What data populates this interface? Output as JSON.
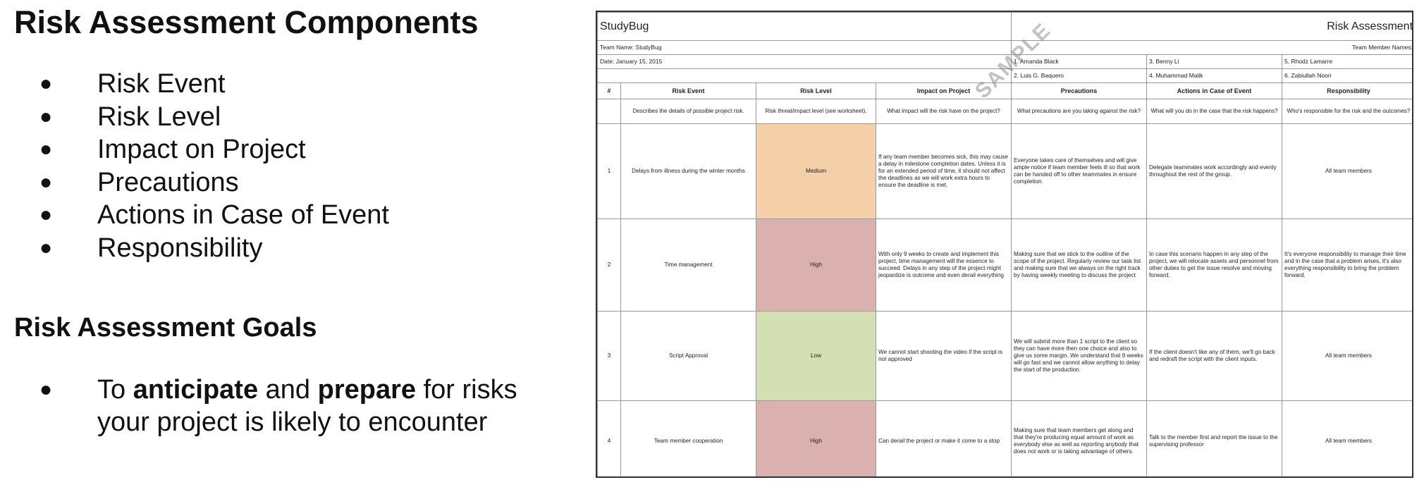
{
  "left": {
    "title": "Risk Assessment Components",
    "components": [
      "Risk Event",
      "Risk Level",
      "Impact on Project",
      "Precautions",
      "Actions in Case of Event",
      "Responsibility"
    ],
    "goals_title": "Risk Assessment Goals",
    "goal": {
      "part1": "To ",
      "bold1": "anticipate",
      "part2": " and ",
      "bold2": "prepare",
      "part3": " for risks your project is likely to encounter"
    },
    "bullet": "●"
  },
  "sheet": {
    "app_name": "StudyBug",
    "sheet_title": "Risk Assessment",
    "team_name": "Team Name: StudyBug",
    "team_members_label": "Team Member Names:",
    "date": "Date: January 15, 2015",
    "members": [
      "1. Amanda Black",
      "2. Luis G. Baquero",
      "3. Benny Li",
      "4. Muhammad Malik",
      "5. Rhodz Lamarre",
      "6. Zabiullah Noori"
    ],
    "watermark": "SAMPLE",
    "headers": [
      "#",
      "Risk Event",
      "Risk Level",
      "Impact on Project",
      "Precautions",
      "Actions in Case of Event",
      "Responsibility"
    ],
    "descriptions": [
      "",
      "Describes the details of possible project risk.",
      "Risk threat/impact level (see worksheet).",
      "What impact will the risk have on the project?",
      "What precautions are you taking against the risk?",
      "What will you do in the case that the risk happens?",
      "Who's responsible for the risk and the outcomes?"
    ],
    "rows": [
      {
        "num": "1",
        "event": "Delays from illness during the winter months",
        "level": "Medium",
        "impact": "If any team member becomes sick, this may cause a delay in milestone completion dates. Unless it is for an extended period of time, it should not affect the deadlines as we will work extra hours to ensure the deadline is met.",
        "precautions": "Everyone takes care of themselves and will give ample notice if team member feels ill so that work can be handed off to other teammates in ensure completion.",
        "actions": "Delegate teammates work accordingly and evenly throughout the rest of the group.",
        "responsibility": "All team members"
      },
      {
        "num": "2",
        "event": "Time management",
        "level": "High",
        "impact": "With only 9 weeks to create and implement this project, time management will the essence to succeed. Delays in any step of the project might jeopardize is outcome and even derail everything",
        "precautions": "Making sure that we stick to the outline of the scope of the project. Regularly review our task list and making sure that we always on the right track by having weekly meeting to discuss the project",
        "actions": "In case this scenario happen in any step of the project, we will relocate assets and personnel from other duties to get the issue resolve and moving forward.",
        "responsibility": "It's everyone responsibility to manage their time and in the case that a problem arises, it's also everything responsibility to bring the problem forward."
      },
      {
        "num": "3",
        "event": "Script Approval",
        "level": "Low",
        "impact": "We cannot start shooting the video if the script is not approved",
        "precautions": "We will submit more than 1 script to the client so they can have more then one choice and also to give us some margin. We understand that 9 weeks will go fast and we cannot allow anything to delay the start of the production.",
        "actions": "If the client doesn't like any of them, we'll go back and redraft the script with the client inputs.",
        "responsibility": "All team members"
      },
      {
        "num": "4",
        "event": "Team member cooperation",
        "level": "High",
        "impact": "Can derail the project or make it come to a stop",
        "precautions": "Making sure that team members get along and that they're producing equal amount of work as everybody else as well as reporting anybody that does not work or is taking advantage of others.",
        "actions": "Talk to the member first and report the issue to the supervising professor",
        "responsibility": "All team members"
      }
    ],
    "level_colors": {
      "Medium": "#f5cfa8",
      "High": "#dbb1b0",
      "Low": "#d5dfb4"
    }
  }
}
